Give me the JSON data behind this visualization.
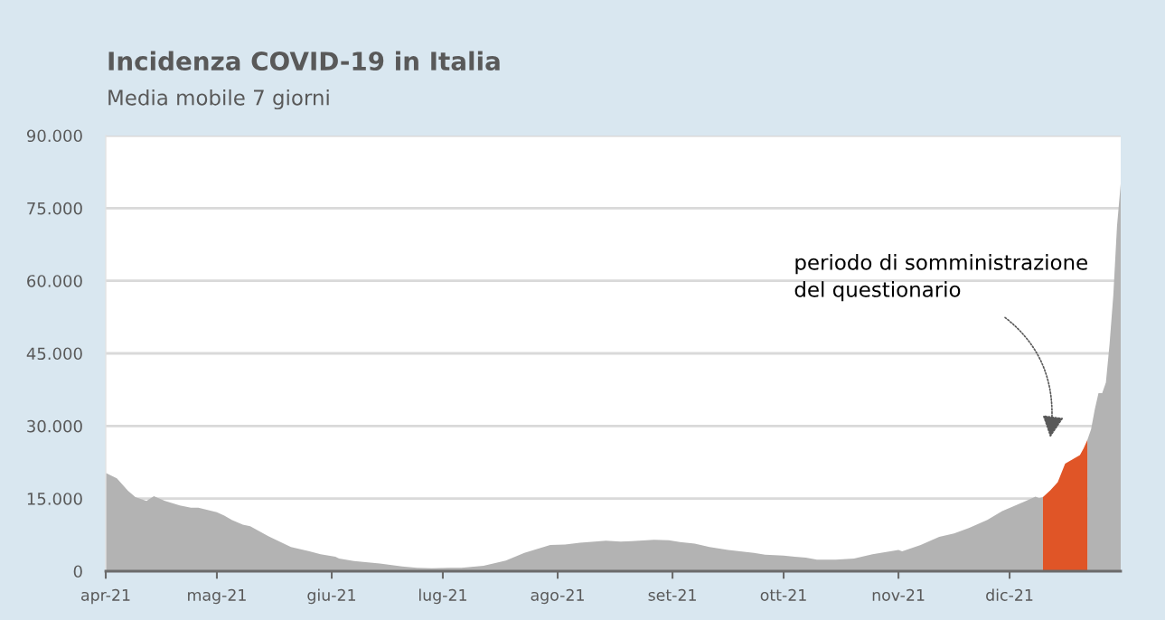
{
  "chart_data": {
    "type": "area",
    "title": "Incidenza COVID-19 in Italia",
    "subtitle": "Media mobile 7 giorni",
    "xlim": [
      "2021-04-01",
      "2021-12-31"
    ],
    "xticks": [
      {
        "value": "2021-04-01",
        "label": "apr-21"
      },
      {
        "value": "2021-05-01",
        "label": "mag-21"
      },
      {
        "value": "2021-06-01",
        "label": "giu-21"
      },
      {
        "value": "2021-07-01",
        "label": "lug-21"
      },
      {
        "value": "2021-08-01",
        "label": "ago-21"
      },
      {
        "value": "2021-09-01",
        "label": "set-21"
      },
      {
        "value": "2021-10-01",
        "label": "ott-21"
      },
      {
        "value": "2021-11-01",
        "label": "nov-21"
      },
      {
        "value": "2021-12-01",
        "label": "dic-21"
      }
    ],
    "ylim": [
      0,
      90000
    ],
    "yticks": [
      0,
      {
        "value": 15000,
        "label": "15.000"
      },
      {
        "value": 30000,
        "label": "30.000"
      },
      {
        "value": 45000,
        "label": "45.000"
      },
      {
        "value": 60000,
        "label": "60.000"
      },
      {
        "value": 75000,
        "label": "75.000"
      },
      {
        "value": 90000,
        "label": "90.000"
      }
    ],
    "grid": "y",
    "series": [
      {
        "color": "#b3b3b3",
        "x": [
          "2021-04-01",
          "2021-04-04",
          "2021-04-07",
          "2021-04-09",
          "2021-04-12",
          "2021-04-14",
          "2021-04-17",
          "2021-04-21",
          "2021-04-24",
          "2021-04-26",
          "2021-05-01",
          "2021-05-03",
          "2021-05-05",
          "2021-05-08",
          "2021-05-10",
          "2021-05-15",
          "2021-05-21",
          "2021-05-26",
          "2021-05-29",
          "2021-06-02",
          "2021-06-03",
          "2021-06-07",
          "2021-06-14",
          "2021-06-20",
          "2021-06-24",
          "2021-06-28",
          "2021-07-03",
          "2021-07-06",
          "2021-07-12",
          "2021-07-18",
          "2021-07-23",
          "2021-07-26",
          "2021-07-30",
          "2021-08-03",
          "2021-08-07",
          "2021-08-11",
          "2021-08-14",
          "2021-08-18",
          "2021-08-21",
          "2021-08-27",
          "2021-08-31",
          "2021-09-03",
          "2021-09-07",
          "2021-09-11",
          "2021-09-16",
          "2021-09-23",
          "2021-09-26",
          "2021-10-01",
          "2021-10-04",
          "2021-10-07",
          "2021-10-10",
          "2021-10-15",
          "2021-10-20",
          "2021-10-25",
          "2021-11-01",
          "2021-11-02",
          "2021-11-07",
          "2021-11-12",
          "2021-11-16",
          "2021-11-20",
          "2021-11-25",
          "2021-11-29",
          "2021-12-05",
          "2021-12-08",
          "2021-12-09",
          "2021-12-10",
          "2021-12-16",
          "2021-12-22",
          "2021-12-23",
          "2021-12-24",
          "2021-12-25",
          "2021-12-26",
          "2021-12-27",
          "2021-12-28",
          "2021-12-29",
          "2021-12-30",
          "2021-12-31"
        ],
        "values": [
          20300,
          19200,
          16600,
          15300,
          14500,
          15500,
          14500,
          13600,
          13100,
          13100,
          12200,
          11500,
          10600,
          9600,
          9300,
          7200,
          5000,
          4100,
          3500,
          3000,
          2600,
          2100,
          1600,
          1000,
          700,
          600,
          700,
          700,
          1100,
          2200,
          3800,
          4500,
          5400,
          5500,
          5900,
          6100,
          6300,
          6100,
          6200,
          6500,
          6400,
          6000,
          5700,
          5000,
          4400,
          3800,
          3400,
          3200,
          3000,
          2800,
          2400,
          2400,
          2600,
          3500,
          4400,
          4100,
          5400,
          7100,
          7800,
          8900,
          10600,
          12400,
          14400,
          15400,
          15100,
          15300,
          null,
          27100,
          29300,
          33400,
          36800,
          36800,
          39000,
          47000,
          57000,
          71300,
          80000
        ]
      },
      {
        "color": "#e05527",
        "x": [
          "2021-12-10",
          "2021-12-12",
          "2021-12-14",
          "2021-12-15",
          "2021-12-16",
          "2021-12-18",
          "2021-12-20",
          "2021-12-21",
          "2021-12-22"
        ],
        "values": [
          15300,
          16700,
          18400,
          20300,
          22200,
          23100,
          24000,
          25400,
          27100
        ]
      }
    ],
    "annotations": [
      "periodo di somministrazione\ndel questionario"
    ]
  }
}
